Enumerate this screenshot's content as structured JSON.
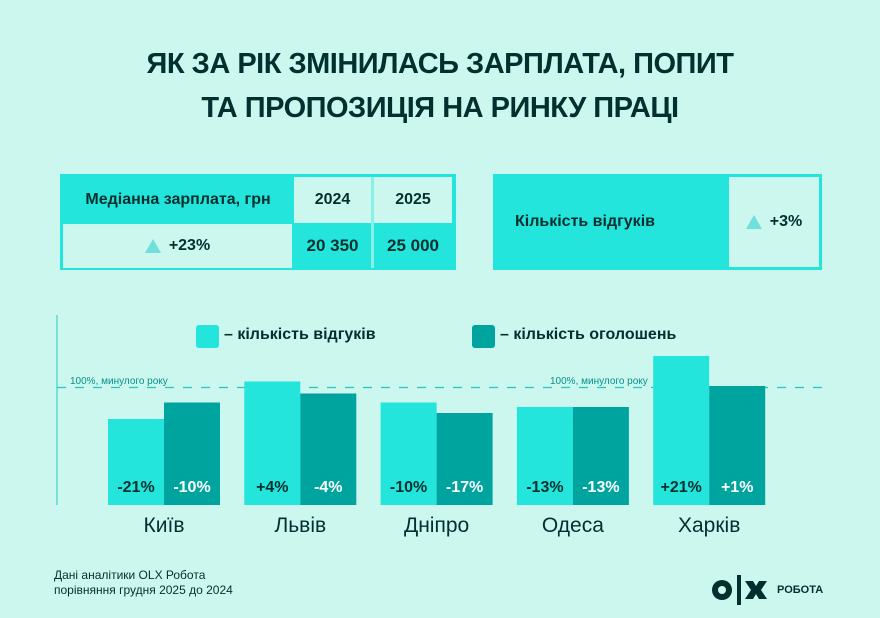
{
  "title_line1": "ЯК ЗА РІК ЗМІНИЛАСЬ ЗАРПЛАТА, ПОПИТ",
  "title_line2": "ТА ПРОПОЗИЦІЯ НА РИНКУ ПРАЦІ",
  "salary_table": {
    "header": "Медіанна зарплата, грн",
    "year1": "2024",
    "year2": "2025",
    "change": "+23%",
    "value1": "20 350",
    "value2": "25 000"
  },
  "responses_table": {
    "label": "Кількість відгуків",
    "change": "+3%"
  },
  "footer": {
    "line1": "Дані аналітики OLX Робота",
    "line2": "порівняння грудня 2025 до 2024"
  },
  "logo": {
    "mark": "OLX",
    "text": "РОБОТА"
  },
  "colors": {
    "background": "#cbf7ee",
    "responses": "#23e5db",
    "vacancies": "#00a49f",
    "text": "#02302f"
  },
  "chart_data": {
    "type": "bar",
    "categories": [
      "Київ",
      "Львів",
      "Дніпро",
      "Одеса",
      "Харків"
    ],
    "series": [
      {
        "name": "– кількість відгуків",
        "values": [
          -21,
          4,
          -10,
          -13,
          21
        ],
        "labels": [
          "-21%",
          "+4%",
          "-10%",
          "-13%",
          "+21%"
        ]
      },
      {
        "name": "– кількість оголошень",
        "values": [
          -10,
          -4,
          -17,
          -13,
          1
        ],
        "labels": [
          "-10%",
          "-4%",
          "-17%",
          "-13%",
          "+1%"
        ]
      }
    ],
    "unit": "% change vs previous year",
    "reference_line": {
      "value": 0,
      "label": "100%, минулого року"
    },
    "legend": "top",
    "grid": false
  }
}
